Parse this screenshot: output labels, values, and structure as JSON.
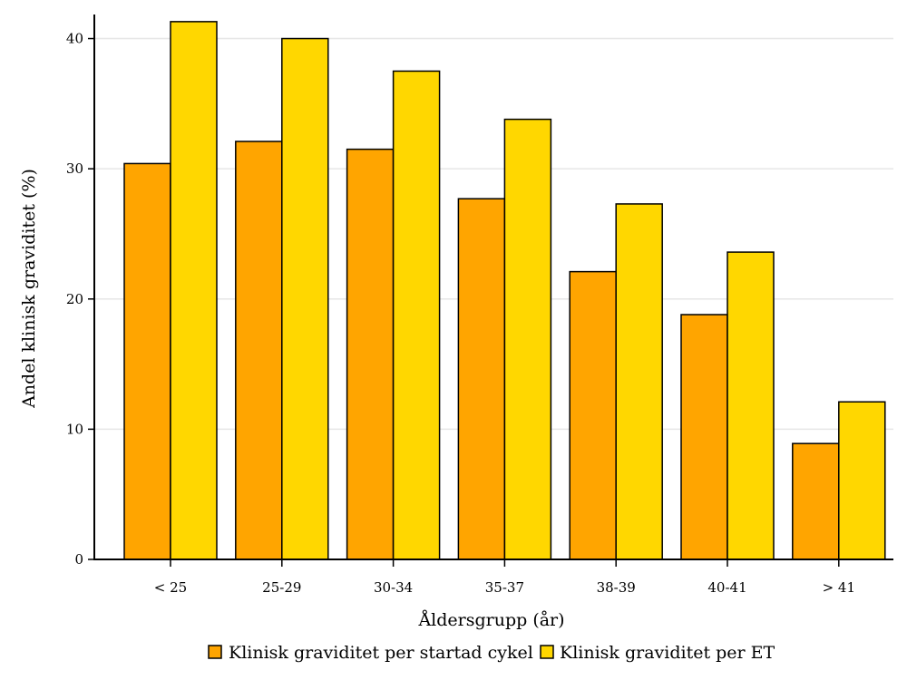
{
  "chart_data": {
    "type": "bar",
    "categories": [
      "< 25",
      "25-29",
      "30-34",
      "35-37",
      "38-39",
      "40-41",
      "> 41"
    ],
    "series": [
      {
        "name": "Klinisk graviditet per startad cykel",
        "color": "#FFA500",
        "values": [
          30.4,
          32.1,
          31.5,
          27.7,
          22.1,
          18.8,
          8.9
        ]
      },
      {
        "name": "Klinisk graviditet per ET",
        "color": "#FFD700",
        "values": [
          41.3,
          40.0,
          37.5,
          33.8,
          27.3,
          23.6,
          12.1
        ]
      }
    ],
    "xlabel": "Åldersgrupp (år)",
    "ylabel": "Andel klinisk graviditet (%)",
    "ylim": [
      0,
      41.5
    ],
    "yticks": [
      "0",
      "10",
      "20",
      "30",
      "40"
    ],
    "grid": true,
    "legend_position": "bottom"
  }
}
